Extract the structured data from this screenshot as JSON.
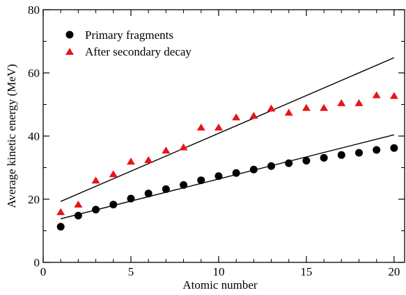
{
  "chart_data": {
    "type": "scatter",
    "title": "",
    "xlabel": "Atomic number",
    "ylabel": "Average kinetic energy (MeV)",
    "xlim": [
      0,
      20.6
    ],
    "ylim": [
      0,
      80
    ],
    "xticks": [
      0,
      5,
      10,
      15,
      20
    ],
    "yticks": [
      0,
      20,
      40,
      60,
      80
    ],
    "grid": false,
    "legend_position": "top-left",
    "series": [
      {
        "name": "Primary fragments",
        "marker": "circle",
        "color": "#000000",
        "x": [
          1,
          2,
          3,
          4,
          5,
          6,
          7,
          8,
          9,
          10,
          11,
          12,
          13,
          14,
          15,
          16,
          17,
          18,
          19,
          20
        ],
        "y": [
          11.3,
          14.8,
          16.7,
          18.3,
          20.2,
          21.8,
          23.2,
          24.5,
          26.0,
          27.3,
          28.3,
          29.4,
          30.5,
          31.4,
          32.2,
          33.1,
          34.0,
          34.7,
          35.6,
          36.2
        ]
      },
      {
        "name": "After secondary decay",
        "marker": "triangle",
        "color": "#e8141b",
        "x": [
          1,
          2,
          3,
          4,
          5,
          6,
          7,
          8,
          9,
          10,
          11,
          12,
          13,
          14,
          15,
          16,
          17,
          18,
          19,
          20
        ],
        "y": [
          15.8,
          18.2,
          25.8,
          27.8,
          31.8,
          32.3,
          35.3,
          36.3,
          42.6,
          42.6,
          45.8,
          46.3,
          48.6,
          47.3,
          48.8,
          48.8,
          50.3,
          50.3,
          52.8,
          52.6
        ]
      }
    ],
    "fit_lines": [
      {
        "series": "Primary fragments",
        "x": [
          1,
          20
        ],
        "y": [
          13.8,
          40.4
        ]
      },
      {
        "series": "After secondary decay",
        "x": [
          1,
          20
        ],
        "y": [
          19.3,
          64.8
        ]
      }
    ]
  }
}
